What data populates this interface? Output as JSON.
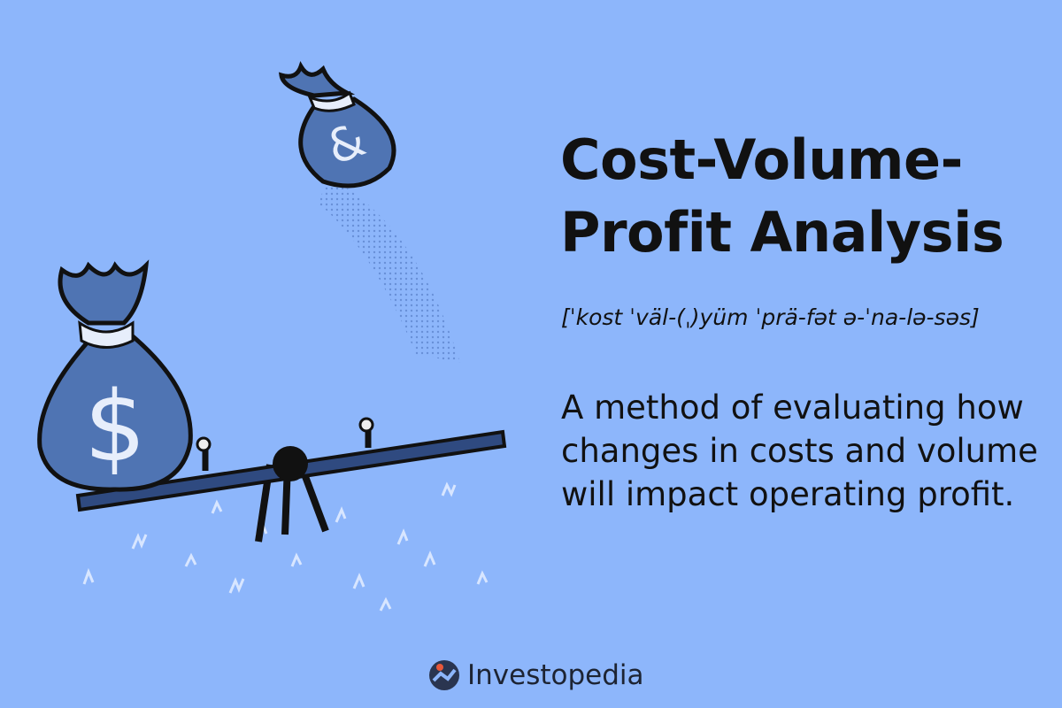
{
  "title_line1": "Cost-Volume-",
  "title_line2": "Profit Analysis",
  "pronunciation": "[ˈkost ˈväl-(ˌ)yüm ˈprä-fət ə-ˈna-lə-səs]",
  "definition": "A method of evaluating how changes in costs and volume will impact operating profit.",
  "brand": "Investopedia",
  "colors": {
    "background": "#8db6fb",
    "bag": "#4f74b3",
    "outline": "#111111",
    "logo_dot": "#e8583a"
  },
  "illustration": {
    "small_bag_symbol": "&",
    "large_bag_symbol": "$"
  }
}
